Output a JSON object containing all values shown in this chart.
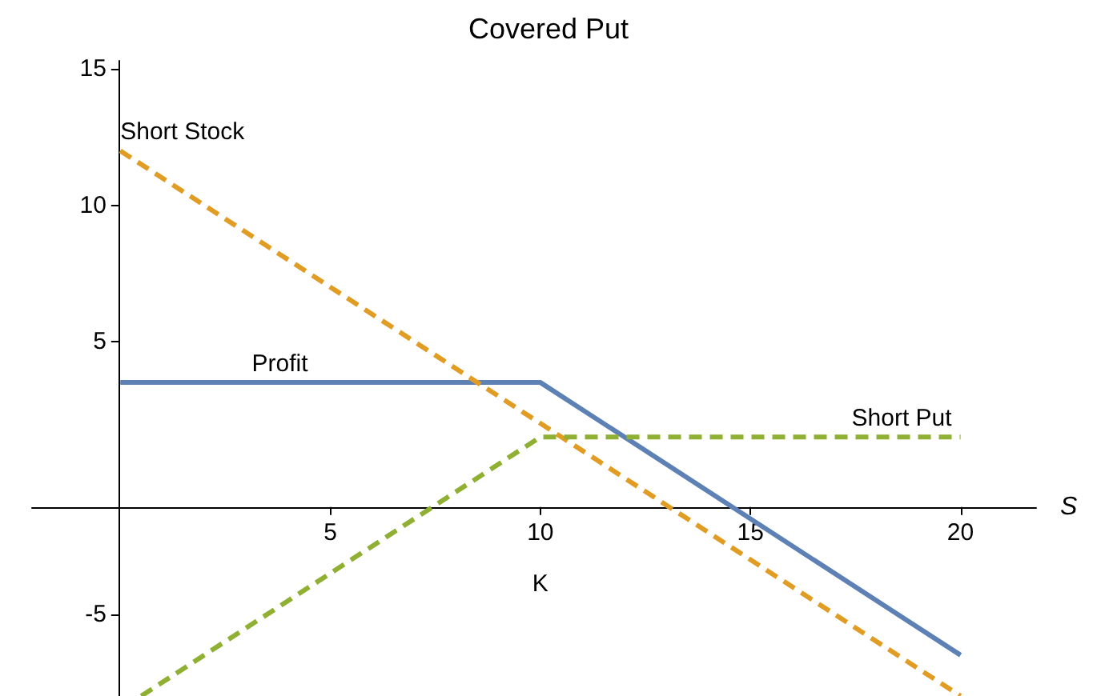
{
  "chart_data": {
    "type": "line",
    "title": "Covered Put",
    "xlabel": "S",
    "xlim": [
      -2.1,
      21.8
    ],
    "xticks": [
      5,
      {
        "value": 10,
        "label": "10\n\nK"
      },
      15,
      20
    ],
    "ylim": [
      -8,
      15.3
    ],
    "yticks": [
      -5,
      5,
      10,
      15
    ],
    "marker": "none",
    "series": [
      {
        "color": "#5e81b5",
        "line_style": "solid",
        "x": [
          0,
          10,
          20
        ],
        "values": [
          3.5,
          3.5,
          -6.5
        ]
      },
      {
        "color": "#e19c24",
        "line_style": "dashed",
        "x": [
          0,
          20
        ],
        "values": [
          12,
          -8
        ]
      },
      {
        "color": "#8fb032",
        "line_style": "dashed",
        "x": [
          0.5,
          10,
          20
        ],
        "values": [
          -8,
          1.5,
          1.5
        ]
      }
    ],
    "annotations": [
      {
        "text": "Short Stock",
        "x": 0,
        "y": 12
      },
      {
        "text": "Profit",
        "x": 3.8,
        "y": 3.5
      },
      {
        "text": "Short Put",
        "x": 18.6,
        "y": 1.5
      }
    ]
  }
}
